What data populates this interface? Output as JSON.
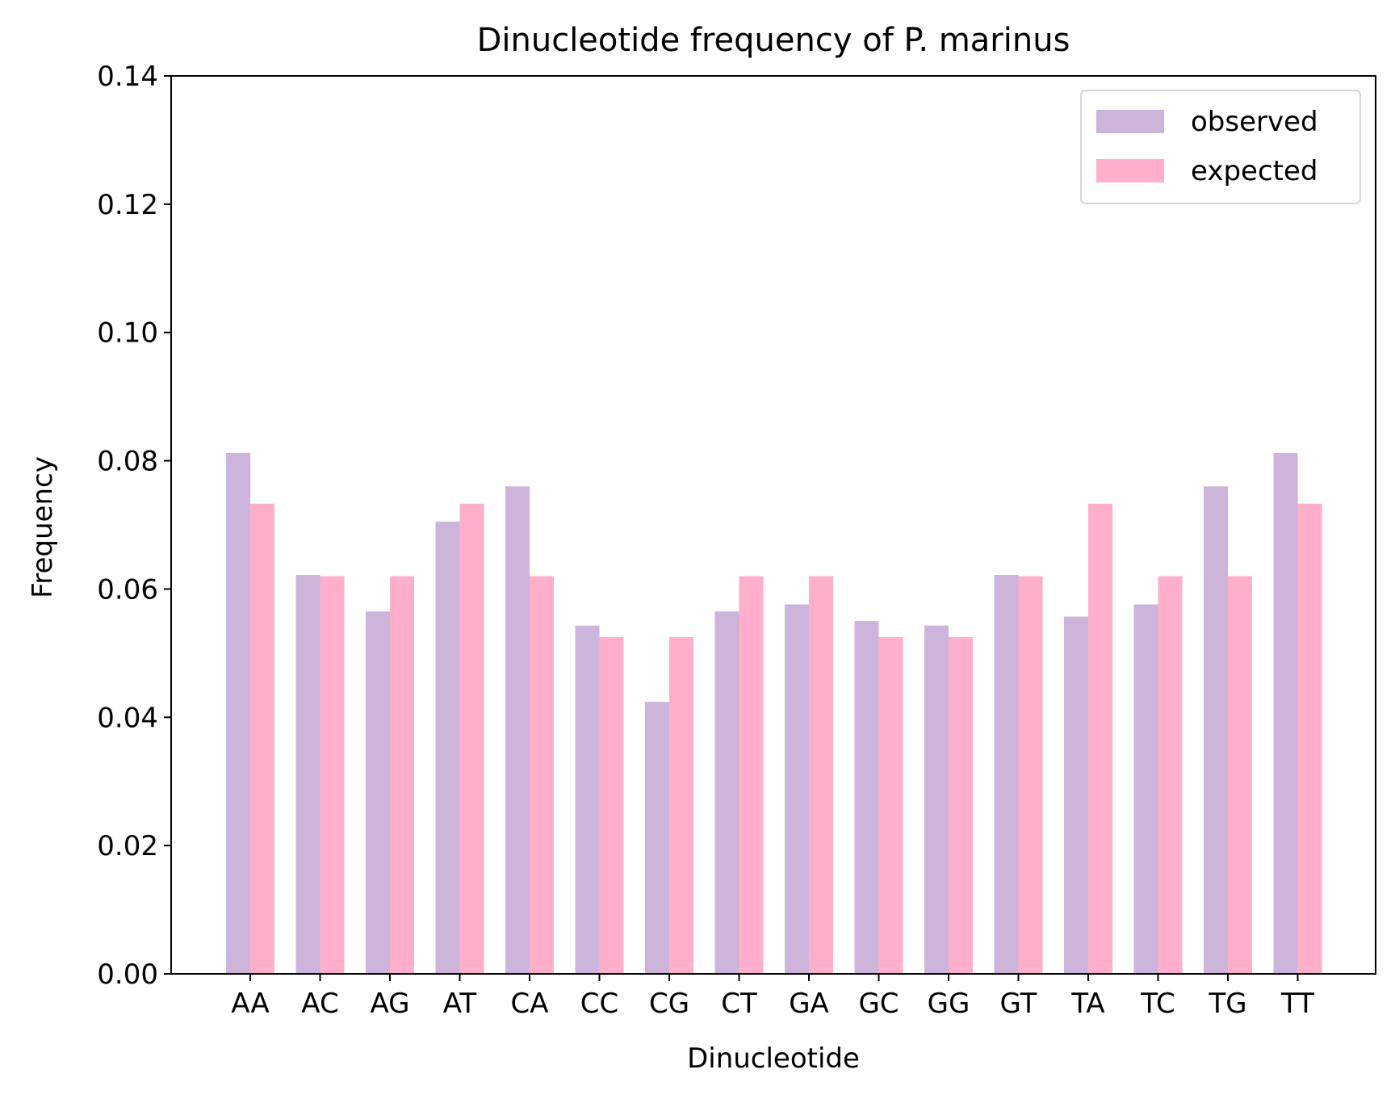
{
  "chart_data": {
    "type": "bar",
    "title": "Dinucleotide frequency of P. marinus",
    "xlabel": "Dinucleotide",
    "ylabel": "Frequency",
    "ylim": [
      0,
      0.14
    ],
    "yticks": [
      "0.00",
      "0.02",
      "0.04",
      "0.06",
      "0.08",
      "0.10",
      "0.12",
      "0.14"
    ],
    "grid": false,
    "legend_position": "top-right",
    "categories": [
      "AA",
      "AC",
      "AG",
      "AT",
      "CA",
      "CC",
      "CG",
      "CT",
      "GA",
      "GC",
      "GG",
      "GT",
      "TA",
      "TC",
      "TG",
      "TT"
    ],
    "series": [
      {
        "name": "observed",
        "color": "#cdb4db",
        "values": [
          0.0812,
          0.0622,
          0.0565,
          0.0705,
          0.076,
          0.0543,
          0.0424,
          0.0565,
          0.0576,
          0.055,
          0.0543,
          0.0622,
          0.0557,
          0.0576,
          0.076,
          0.0812
        ]
      },
      {
        "name": "expected",
        "color": "#ffafcc",
        "values": [
          0.0733,
          0.062,
          0.062,
          0.0733,
          0.062,
          0.0525,
          0.0525,
          0.062,
          0.062,
          0.0525,
          0.0525,
          0.062,
          0.0733,
          0.062,
          0.062,
          0.0733
        ]
      }
    ]
  }
}
